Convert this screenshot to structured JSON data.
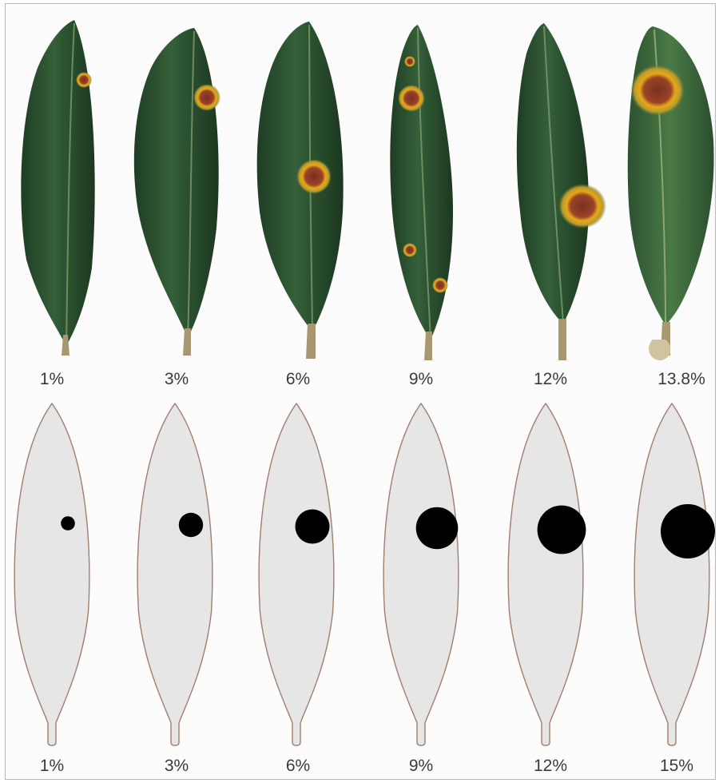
{
  "photo_row": {
    "labels": [
      "1%",
      "3%",
      "6%",
      "9%",
      "12%",
      "13.8%"
    ],
    "severity_percent": [
      1,
      3,
      6,
      9,
      12,
      13.8
    ]
  },
  "diagram_row": {
    "labels": [
      "1%",
      "3%",
      "6%",
      "9%",
      "12%",
      "15%"
    ],
    "severity_percent": [
      1,
      3,
      6,
      9,
      12,
      15
    ]
  },
  "colors": {
    "leaf_dark": "#1f3d24",
    "leaf_mid": "#2f5a35",
    "leaf_light": "#4d7a48",
    "midrib": "#7f9a6c",
    "lesion_core": "#8a3a26",
    "lesion_ring": "#e0a21c",
    "lesion_halo": "#b8a030",
    "outline_fill": "#e6e6e6",
    "outline_stroke": "#a07e70",
    "spot": "#000000",
    "label": "#3a3a3a"
  },
  "icons": {
    "photo_leaf": "olive-leaf-icon",
    "lesion": "peacock-spot-lesion-icon",
    "outline_leaf": "leaf-outline-icon",
    "spot": "severity-spot-icon"
  }
}
